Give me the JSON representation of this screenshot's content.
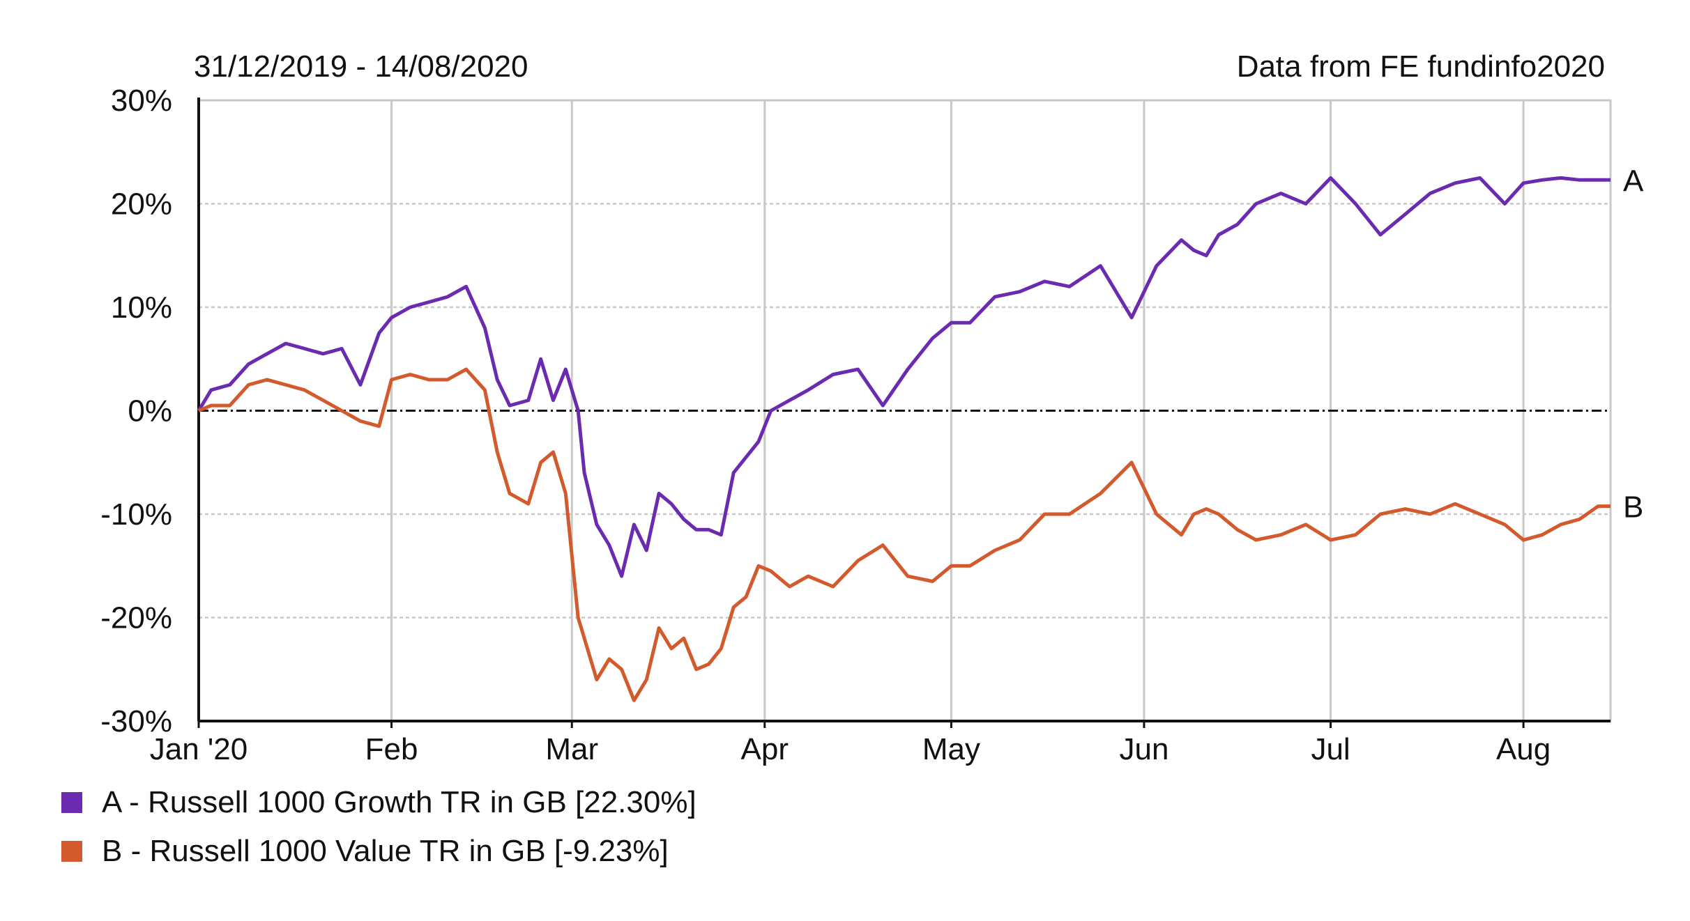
{
  "header": {
    "date_range": "31/12/2019 - 14/08/2020",
    "source": "Data from FE fundinfo2020"
  },
  "legend": [
    {
      "key": "A",
      "text": "A - Russell 1000 Growth TR in GB [22.30%]",
      "color": "#6a2bb0"
    },
    {
      "key": "B",
      "text": "B - Russell 1000 Value TR in GB [-9.23%]",
      "color": "#d35a2c"
    }
  ],
  "chart_data": {
    "type": "line",
    "title": "",
    "xlabel": "",
    "ylabel": "",
    "x_ticks": [
      "Jan '20",
      "Feb",
      "Mar",
      "Apr",
      "May",
      "Jun",
      "Jul",
      "Aug"
    ],
    "x_tick_days": [
      0,
      31,
      60,
      91,
      121,
      152,
      182,
      213
    ],
    "x_range_days": [
      0,
      227
    ],
    "y_ticks": [
      "30%",
      "20%",
      "10%",
      "0%",
      "-10%",
      "-20%",
      "-30%"
    ],
    "y_tick_values": [
      30,
      20,
      10,
      0,
      -10,
      -20,
      -30
    ],
    "ylim": [
      -30,
      30
    ],
    "grid": true,
    "zero_line": true,
    "series": [
      {
        "name": "A",
        "label": "A",
        "color": "#6a2bb0",
        "x": [
          0,
          2,
          5,
          8,
          11,
          14,
          17,
          20,
          23,
          26,
          29,
          31,
          34,
          37,
          40,
          43,
          46,
          48,
          50,
          53,
          55,
          57,
          59,
          61,
          62,
          64,
          66,
          68,
          70,
          72,
          74,
          76,
          78,
          80,
          82,
          84,
          86,
          88,
          90,
          92,
          95,
          98,
          102,
          106,
          110,
          114,
          118,
          121,
          124,
          128,
          132,
          136,
          140,
          145,
          150,
          154,
          158,
          160,
          162,
          164,
          167,
          170,
          174,
          178,
          182,
          186,
          190,
          194,
          198,
          202,
          206,
          210,
          213,
          216,
          219,
          222,
          225,
          227
        ],
        "values": [
          0,
          2,
          2.5,
          4.5,
          5.5,
          6.5,
          6,
          5.5,
          6,
          2.5,
          7.5,
          9,
          10,
          10.5,
          11,
          12,
          8,
          3,
          0.5,
          1,
          5,
          1,
          4,
          0,
          -6,
          -11,
          -13,
          -16,
          -11,
          -13.5,
          -8,
          -9,
          -10.5,
          -11.5,
          -11.5,
          -12,
          -6,
          -4.5,
          -3,
          0,
          1,
          2,
          3.5,
          4,
          0.5,
          4,
          7,
          8.5,
          8.5,
          11,
          11.5,
          12.5,
          12,
          14,
          9,
          14,
          16.5,
          15.5,
          15,
          17,
          18,
          20,
          21,
          20,
          22.5,
          20,
          17,
          19,
          21,
          22,
          22.5,
          20,
          22,
          22.3,
          22.5,
          22.3,
          22.3,
          22.3
        ]
      },
      {
        "name": "B",
        "label": "B",
        "color": "#d35a2c",
        "x": [
          0,
          2,
          5,
          8,
          11,
          14,
          17,
          20,
          23,
          26,
          29,
          31,
          34,
          37,
          40,
          43,
          46,
          48,
          50,
          53,
          55,
          57,
          59,
          61,
          62,
          64,
          66,
          68,
          70,
          72,
          74,
          76,
          78,
          80,
          82,
          84,
          86,
          88,
          90,
          92,
          95,
          98,
          102,
          106,
          110,
          114,
          118,
          121,
          124,
          128,
          132,
          136,
          140,
          145,
          150,
          154,
          158,
          160,
          162,
          164,
          167,
          170,
          174,
          178,
          182,
          186,
          190,
          194,
          198,
          202,
          206,
          210,
          213,
          216,
          219,
          222,
          225,
          227
        ],
        "values": [
          0,
          0.5,
          0.5,
          2.5,
          3,
          2.5,
          2,
          1,
          0,
          -1,
          -1.5,
          3,
          3.5,
          3,
          3,
          4,
          2,
          -4,
          -8,
          -9,
          -5,
          -4,
          -8,
          -20,
          -22,
          -26,
          -24,
          -25,
          -28,
          -26,
          -21,
          -23,
          -22,
          -25,
          -24.5,
          -23,
          -19,
          -18,
          -15,
          -15.5,
          -17,
          -16,
          -17,
          -14.5,
          -13,
          -16,
          -16.5,
          -15,
          -15,
          -13.5,
          -12.5,
          -10,
          -10,
          -8,
          -5,
          -10,
          -12,
          -10,
          -9.5,
          -10,
          -11.5,
          -12.5,
          -12,
          -11,
          -12.5,
          -12,
          -10,
          -9.5,
          -10,
          -9,
          -10,
          -11,
          -12.5,
          -12,
          -11,
          -10.5,
          -9.23,
          -9.23
        ]
      }
    ]
  }
}
